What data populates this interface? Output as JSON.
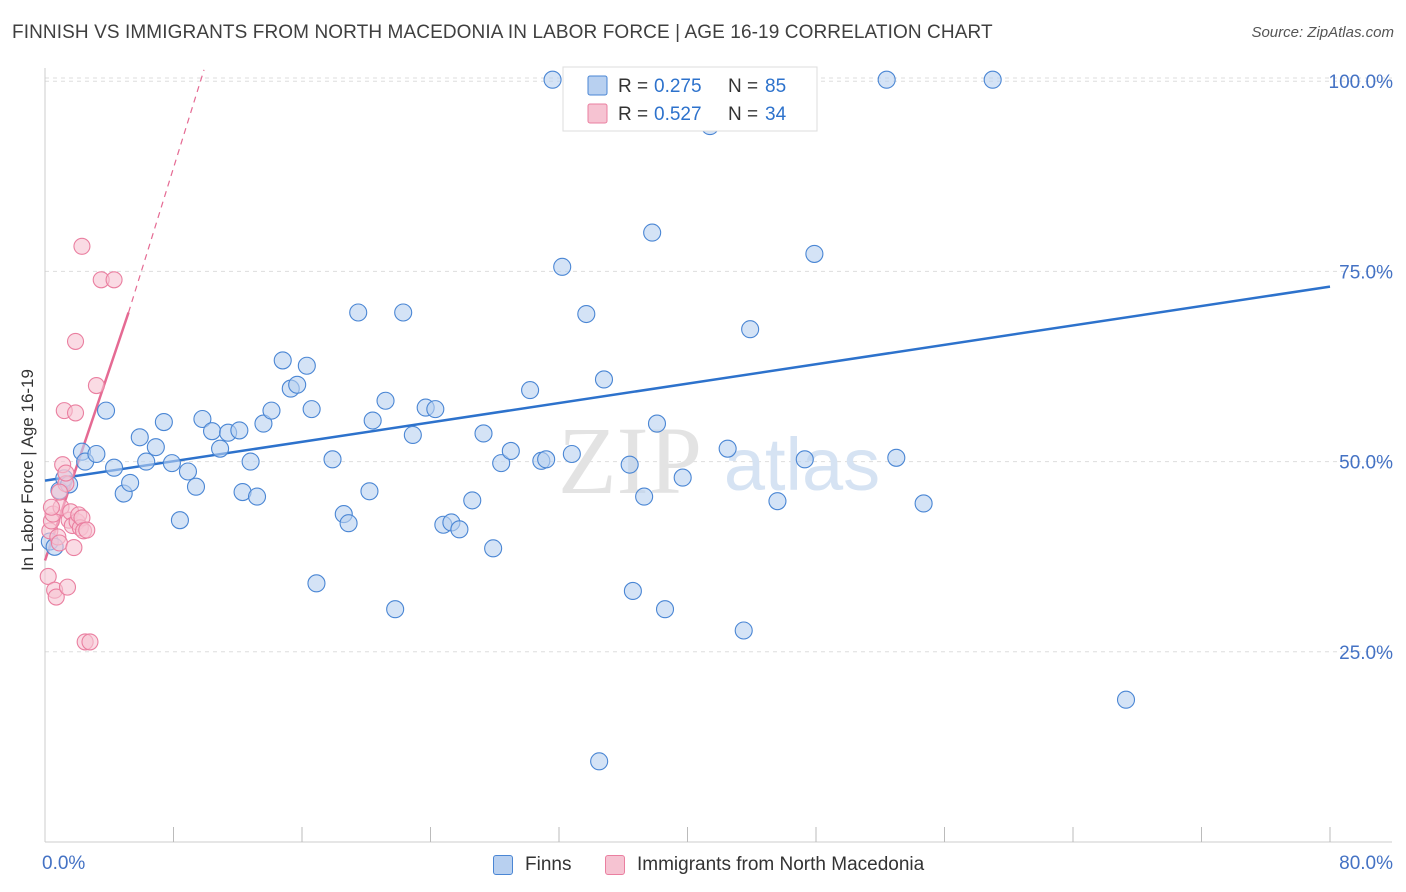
{
  "title": "FINNISH VS IMMIGRANTS FROM NORTH MACEDONIA IN LABOR FORCE | AGE 16-19 CORRELATION CHART",
  "source": "Source: ZipAtlas.com",
  "watermark": {
    "zip": "ZIP",
    "atlas": "atlas"
  },
  "colors": {
    "finns": "#4a86d4",
    "finns_fill": "#b8d0f0",
    "finns_line": "#2d72cc",
    "macedonia": "#ea7fa0",
    "macedonia_fill": "#f6c3d2",
    "macedonia_line": "#e56a93",
    "tick_label": "#4472c4",
    "grid": "#dddddd"
  },
  "legend": {
    "r_label": "R =",
    "n_label": "N =",
    "rows": [
      {
        "series": "finns",
        "r": "0.275",
        "n": "85"
      },
      {
        "series": "macedonia",
        "r": "0.527",
        "n": "34"
      }
    ]
  },
  "bottom_legend": [
    {
      "series": "finns",
      "label": "Finns"
    },
    {
      "series": "macedonia",
      "label": "Immigrants from North Macedonia"
    }
  ],
  "chart_data": {
    "type": "scatter",
    "title": "FINNISH VS IMMIGRANTS FROM NORTH MACEDONIA IN LABOR FORCE | AGE 16-19 CORRELATION CHART",
    "xlabel": "",
    "ylabel": "In Labor Force | Age 16-19",
    "xlim": [
      0,
      80
    ],
    "ylim": [
      0,
      102
    ],
    "x_tick_labels": [
      {
        "value": 0,
        "label": "0.0%"
      },
      {
        "value": 80,
        "label": "80.0%"
      }
    ],
    "x_minor_ticks": [
      8,
      16,
      24,
      32,
      40,
      48,
      56,
      64,
      72
    ],
    "y_tick_labels": [
      {
        "value": 25,
        "label": "25.0%"
      },
      {
        "value": 50,
        "label": "50.0%"
      },
      {
        "value": 75,
        "label": "75.0%"
      },
      {
        "value": 100,
        "label": "100.0%"
      }
    ],
    "series": [
      {
        "name": "Finns",
        "r": 0.275,
        "n": 85,
        "trend": {
          "x0": 0,
          "y0": 47.5,
          "x1": 80,
          "y1": 73.0
        },
        "points": [
          [
            0.3,
            39.5
          ],
          [
            0.6,
            38.8
          ],
          [
            0.9,
            46.2
          ],
          [
            1.2,
            47.8
          ],
          [
            1.5,
            47.0
          ],
          [
            2.3,
            51.3
          ],
          [
            2.5,
            50.0
          ],
          [
            3.2,
            51.0
          ],
          [
            3.8,
            56.7
          ],
          [
            4.3,
            49.2
          ],
          [
            4.9,
            45.8
          ],
          [
            5.3,
            47.2
          ],
          [
            5.9,
            53.2
          ],
          [
            6.3,
            50.0
          ],
          [
            6.9,
            51.9
          ],
          [
            7.4,
            55.2
          ],
          [
            7.9,
            49.8
          ],
          [
            8.4,
            42.3
          ],
          [
            8.9,
            48.7
          ],
          [
            9.4,
            46.7
          ],
          [
            9.8,
            55.6
          ],
          [
            10.4,
            54.0
          ],
          [
            10.9,
            51.7
          ],
          [
            11.4,
            53.8
          ],
          [
            12.1,
            54.1
          ],
          [
            12.3,
            46.0
          ],
          [
            12.8,
            50.0
          ],
          [
            13.2,
            45.4
          ],
          [
            13.6,
            55.0
          ],
          [
            14.1,
            56.7
          ],
          [
            14.8,
            63.3
          ],
          [
            15.3,
            59.6
          ],
          [
            15.7,
            60.1
          ],
          [
            16.3,
            62.6
          ],
          [
            16.6,
            56.9
          ],
          [
            17.9,
            50.3
          ],
          [
            18.6,
            43.1
          ],
          [
            18.9,
            41.9
          ],
          [
            19.5,
            69.6
          ],
          [
            20.2,
            46.1
          ],
          [
            20.4,
            55.4
          ],
          [
            21.2,
            58.0
          ],
          [
            21.8,
            30.6
          ],
          [
            22.3,
            69.6
          ],
          [
            22.9,
            53.5
          ],
          [
            23.7,
            57.1
          ],
          [
            24.3,
            56.9
          ],
          [
            24.8,
            41.7
          ],
          [
            25.3,
            42.0
          ],
          [
            25.8,
            41.1
          ],
          [
            26.6,
            44.9
          ],
          [
            27.3,
            53.7
          ],
          [
            27.9,
            38.6
          ],
          [
            28.4,
            49.8
          ],
          [
            29.0,
            51.4
          ],
          [
            30.2,
            59.4
          ],
          [
            30.9,
            50.1
          ],
          [
            31.6,
            100.2
          ],
          [
            32.2,
            75.6
          ],
          [
            32.8,
            51.0
          ],
          [
            33.7,
            69.4
          ],
          [
            34.8,
            60.8
          ],
          [
            34.5,
            10.6
          ],
          [
            36.6,
            33.0
          ],
          [
            37.3,
            45.4
          ],
          [
            37.8,
            80.1
          ],
          [
            38.1,
            55.0
          ],
          [
            38.6,
            30.6
          ],
          [
            39.7,
            47.9
          ],
          [
            40.3,
            100.2
          ],
          [
            41.4,
            94.1
          ],
          [
            42.5,
            51.7
          ],
          [
            43.5,
            27.8
          ],
          [
            43.9,
            67.4
          ],
          [
            53.0,
            50.5
          ],
          [
            52.4,
            100.2
          ],
          [
            59.0,
            100.2
          ],
          [
            47.3,
            50.3
          ],
          [
            47.9,
            77.3
          ],
          [
            54.7,
            44.5
          ],
          [
            67.3,
            18.7
          ],
          [
            16.9,
            34.0
          ],
          [
            36.4,
            49.6
          ],
          [
            31.2,
            50.3
          ],
          [
            45.6,
            44.8
          ]
        ]
      },
      {
        "name": "Immigrants from North Macedonia",
        "r": 0.527,
        "n": 34,
        "trend": {
          "x0": 0,
          "y0": 37.0,
          "x1": 5.2,
          "y1": 69.6
        },
        "trend_extension": {
          "x0": 5.2,
          "y0": 69.6,
          "x1": 9.9,
          "y1": 101.5
        },
        "points": [
          [
            0.2,
            34.9
          ],
          [
            0.3,
            40.9
          ],
          [
            0.4,
            42.2
          ],
          [
            0.5,
            43.1
          ],
          [
            0.6,
            33.1
          ],
          [
            0.7,
            32.2
          ],
          [
            0.8,
            40.1
          ],
          [
            0.9,
            39.3
          ],
          [
            1.0,
            44.0
          ],
          [
            1.1,
            49.6
          ],
          [
            1.2,
            56.7
          ],
          [
            1.3,
            47.1
          ],
          [
            1.4,
            33.5
          ],
          [
            1.5,
            42.3
          ],
          [
            1.6,
            43.4
          ],
          [
            1.7,
            41.6
          ],
          [
            1.8,
            38.7
          ],
          [
            1.9,
            56.4
          ],
          [
            1.9,
            65.8
          ],
          [
            2.0,
            42.1
          ],
          [
            2.1,
            43.0
          ],
          [
            2.2,
            41.3
          ],
          [
            2.3,
            42.6
          ],
          [
            2.4,
            40.9
          ],
          [
            2.3,
            78.3
          ],
          [
            2.5,
            26.3
          ],
          [
            2.6,
            41.0
          ],
          [
            2.8,
            26.3
          ],
          [
            3.2,
            60.0
          ],
          [
            3.5,
            73.9
          ],
          [
            4.3,
            73.9
          ],
          [
            0.4,
            44.0
          ],
          [
            0.9,
            46.0
          ],
          [
            1.3,
            48.5
          ]
        ]
      }
    ]
  }
}
